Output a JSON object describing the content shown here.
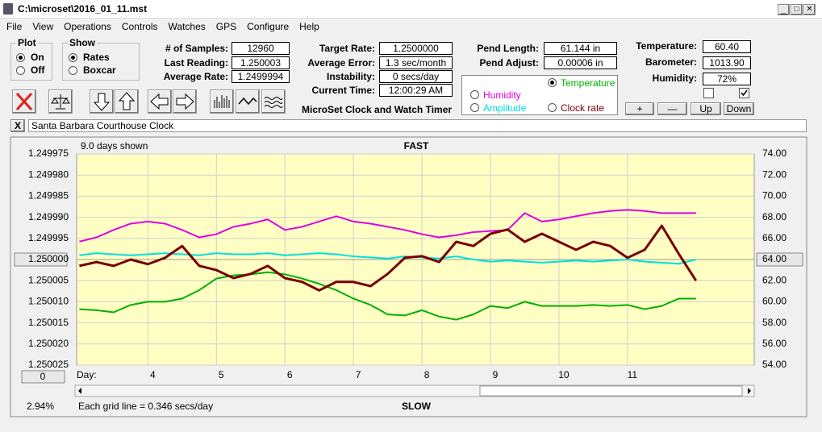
{
  "window": {
    "title": "C:\\microset\\2016_01_11.mst"
  },
  "menu": [
    "File",
    "View",
    "Operations",
    "Controls",
    "Watches",
    "GPS",
    "Configure",
    "Help"
  ],
  "plot_group": {
    "title": "Plot",
    "options": [
      "On",
      "Off"
    ],
    "selected": 0
  },
  "show_group": {
    "title": "Show",
    "options": [
      "Rates",
      "Boxcar"
    ],
    "selected": 0
  },
  "fields": [
    {
      "label": "# of Samples:",
      "value": "12960"
    },
    {
      "label": "Last Reading:",
      "value": "1.250003"
    },
    {
      "label": "Average Rate:",
      "value": "1.2499994"
    },
    {
      "label": "Target Rate:",
      "value": "1.2500000"
    },
    {
      "label": "Average Error:",
      "value": "1.3 sec/month"
    },
    {
      "label": "Instability:",
      "value": "0 secs/day"
    },
    {
      "label": "Current Time:",
      "value": "12:00:29 AM"
    },
    {
      "label": "Pend Length:",
      "value": "61.144 in"
    },
    {
      "label": "Pend Adjust:",
      "value": "0.00006 in"
    },
    {
      "label": "Temperature:",
      "value": "60.40"
    },
    {
      "label": "Barometer:",
      "value": "1013.90"
    },
    {
      "label": "Humidity:",
      "value": "72%"
    }
  ],
  "app_name": "MicroSet Clock and Watch Timer",
  "trace_selected": 0,
  "checkboxes": [
    false,
    true
  ],
  "adjust_buttons": [
    "+",
    "—",
    "Up",
    "Down"
  ],
  "clear_button": "X",
  "clock_name": "Santa Barbara Courthouse Clock",
  "chart_data": {
    "type": "line",
    "days_shown": "9.0 days shown",
    "top_label": "FAST",
    "bottom_label": "SLOW",
    "x_label": "Day:",
    "offset_button": "0",
    "percent": "2.94%",
    "grid_note": "Each grid line = 0.346 secs/day",
    "grid": true,
    "x": [
      3.0,
      3.25,
      3.5,
      3.75,
      4.0,
      4.25,
      4.5,
      4.75,
      5.0,
      5.25,
      5.5,
      5.75,
      6.0,
      6.25,
      6.5,
      6.75,
      7.0,
      7.25,
      7.5,
      7.75,
      8.0,
      8.25,
      8.5,
      8.75,
      9.0,
      9.25,
      9.5,
      9.75,
      10.0,
      10.25,
      10.5,
      10.75,
      11.0,
      11.25,
      11.5,
      11.75,
      12.0
    ],
    "xlim": [
      2.96,
      12.85
    ],
    "xticks": [
      4,
      5,
      6,
      7,
      8,
      9,
      10,
      11
    ],
    "ylim": [
      1.250025,
      1.249975
    ],
    "yticks": [
      1.249975,
      {
        "value": 1.24998,
        "label": "1.249980"
      },
      1.249985,
      {
        "value": 1.24999,
        "label": "1.249990"
      },
      1.249995,
      {
        "value": 1.25,
        "label": "1.250000"
      },
      1.250005,
      {
        "value": 1.25001,
        "label": "1.250010"
      },
      1.250015,
      {
        "value": 1.25002,
        "label": "1.250020"
      },
      1.250025
    ],
    "y2lim": [
      54,
      74
    ],
    "y2ticks": [
      {
        "value": 74,
        "label": "74.00"
      },
      {
        "value": 72,
        "label": "72.00"
      },
      {
        "value": 70,
        "label": "70.00"
      },
      {
        "value": 68,
        "label": "68.00"
      },
      {
        "value": 66,
        "label": "66.00"
      },
      {
        "value": 64,
        "label": "64.00"
      },
      {
        "value": 62,
        "label": "62.00"
      },
      {
        "value": 60,
        "label": "60.00"
      },
      {
        "value": 58,
        "label": "58.00"
      },
      {
        "value": 56,
        "label": "56.00"
      },
      {
        "value": 54,
        "label": "54.00"
      }
    ],
    "series": [
      {
        "name": "Temperature",
        "color": "#00b000",
        "axis": "y2",
        "values": [
          59.3,
          59.2,
          59.0,
          59.7,
          60.0,
          60.0,
          60.3,
          61.1,
          62.2,
          62.5,
          62.6,
          62.8,
          62.6,
          62.2,
          61.7,
          61.1,
          60.3,
          59.7,
          58.8,
          58.7,
          59.2,
          58.6,
          58.3,
          58.8,
          59.6,
          59.4,
          60.0,
          59.6,
          59.6,
          59.6,
          59.7,
          59.6,
          59.7,
          59.3,
          59.6,
          60.3,
          60.3
        ]
      },
      {
        "name": "Humidity",
        "color": "#e000e0",
        "axis": "y2",
        "values": [
          65.7,
          66.1,
          66.8,
          67.4,
          67.6,
          67.4,
          66.8,
          66.1,
          66.4,
          67.1,
          67.4,
          67.8,
          66.8,
          67.1,
          67.6,
          68.1,
          67.6,
          67.4,
          67.1,
          66.8,
          66.4,
          66.1,
          66.3,
          66.6,
          66.7,
          66.8,
          68.4,
          67.6,
          67.8,
          68.1,
          68.4,
          68.6,
          68.7,
          68.6,
          68.4,
          68.4,
          68.4
        ]
      },
      {
        "name": "Amplitude",
        "color": "#00dede",
        "axis": "y2",
        "values": [
          64.4,
          64.6,
          64.5,
          64.4,
          64.5,
          64.6,
          64.5,
          64.4,
          64.6,
          64.5,
          64.5,
          64.6,
          64.4,
          64.5,
          64.6,
          64.5,
          64.3,
          64.2,
          64.1,
          64.3,
          64.2,
          64.1,
          64.3,
          64.0,
          63.8,
          63.9,
          63.8,
          63.7,
          63.8,
          63.9,
          63.8,
          63.9,
          64.0,
          63.8,
          63.7,
          63.6,
          64.0
        ]
      },
      {
        "name": "Clock rate",
        "color": "#7a0000",
        "values": [
          1.2500015,
          1.2500006,
          1.2500015,
          1.25,
          1.2500011,
          1.2499996,
          1.2499968,
          1.2500015,
          1.2500025,
          1.2500044,
          1.2500034,
          1.2500015,
          1.2500044,
          1.2500053,
          1.2500073,
          1.2500053,
          1.2500053,
          1.2500063,
          1.2500034,
          1.2499996,
          1.2499992,
          1.2500006,
          1.2499958,
          1.2499968,
          1.2499939,
          1.2499929,
          1.2499958,
          1.2499939,
          1.2499958,
          1.2499977,
          1.2499958,
          1.2499968,
          1.2499996,
          1.2499977,
          1.249992,
          1.2499987,
          1.250005
        ]
      }
    ]
  }
}
